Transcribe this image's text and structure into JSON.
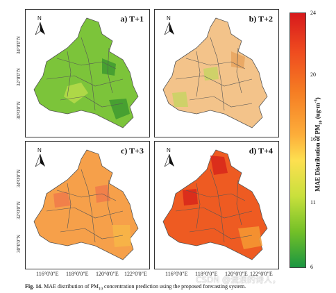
{
  "panels": [
    {
      "label": "a) T+1",
      "fill": "#7cc43a",
      "accent": "#b7dc4a",
      "dark": "#3e9a30"
    },
    {
      "label": "b) T+2",
      "fill": "#f3c38a",
      "accent": "#c8d463",
      "dark": "#e8a55e"
    },
    {
      "label": "c) T+3",
      "fill": "#f6a04a",
      "accent": "#f07a4a",
      "dark": "#f7b646"
    },
    {
      "label": "d) T+4",
      "fill": "#ee5b22",
      "accent": "#d7271a",
      "dark": "#f49a33"
    }
  ],
  "north_label": "N",
  "y_ticks": [
    "34°0'0\"N",
    "32°0'0\"N",
    "30°0'0\"N"
  ],
  "x_ticks": [
    "116°0'0\"E",
    "118°0'0\"E",
    "120°0'0\"E",
    "122°0'0\"E"
  ],
  "colorbar": {
    "ticks": [
      "24",
      "20",
      "16",
      "11",
      "6"
    ],
    "title_prefix": "MAE Distribution of PM",
    "title_sub": "10",
    "title_suffix": " (ug·m",
    "title_sup": "-3",
    "title_end": ")",
    "colors": [
      "#d7191c",
      "#f57a22",
      "#fde050",
      "#73c027",
      "#1a9641"
    ]
  },
  "caption": {
    "prefix": "Fig. 14.",
    "text_a": " MAE distribution of PM",
    "sub": "10",
    "text_b": " concentration prediction using the proposed forecasting system."
  },
  "watermark": "CSDN @流浪的诗人，"
}
